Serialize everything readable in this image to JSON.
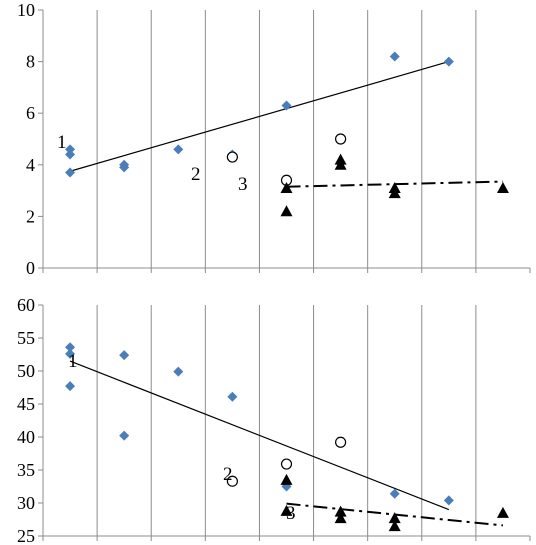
{
  "chart_data": [
    {
      "type": "scatter",
      "ylim": [
        0,
        10
      ],
      "yticks": [
        "0",
        "2",
        "4",
        "6",
        "8",
        "10"
      ],
      "x_categories": 9,
      "grid": "vertical",
      "series": [
        {
          "label": "1",
          "marker": "diamond",
          "color": "#4a7ebb",
          "points": [
            [
              1,
              4.6
            ],
            [
              1,
              4.4
            ],
            [
              1,
              3.7
            ],
            [
              2,
              4.0
            ],
            [
              2,
              3.9
            ],
            [
              3,
              4.6
            ],
            [
              4,
              4.4
            ],
            [
              5,
              6.3
            ],
            [
              7,
              8.2
            ],
            [
              8,
              8.0
            ]
          ],
          "trend": "solid",
          "trend_line": [
            [
              1,
              3.75
            ],
            [
              8,
              8.0
            ]
          ]
        },
        {
          "label": "2",
          "marker": "open-circle",
          "color": "#000000",
          "points": [
            [
              4,
              4.3
            ],
            [
              5,
              3.4
            ],
            [
              6,
              5.0
            ]
          ]
        },
        {
          "label": "3",
          "marker": "triangle",
          "color": "#000000",
          "points": [
            [
              5,
              3.1
            ],
            [
              5,
              2.2
            ],
            [
              6,
              4.2
            ],
            [
              6,
              4.0
            ],
            [
              7,
              3.1
            ],
            [
              7,
              2.9
            ],
            [
              9,
              3.1
            ]
          ],
          "trend": "dash-dot",
          "trend_line": [
            [
              5,
              3.15
            ],
            [
              9,
              3.35
            ]
          ]
        }
      ]
    },
    {
      "type": "scatter",
      "ylim": [
        25,
        60
      ],
      "yticks": [
        "25",
        "30",
        "35",
        "40",
        "45",
        "50",
        "55",
        "60"
      ],
      "x_categories": 9,
      "grid": "vertical",
      "series": [
        {
          "label": "1",
          "marker": "diamond",
          "color": "#4a7ebb",
          "points": [
            [
              1,
              53.6
            ],
            [
              1,
              52.6
            ],
            [
              1,
              47.7
            ],
            [
              2,
              52.4
            ],
            [
              2,
              40.2
            ],
            [
              3,
              49.9
            ],
            [
              4,
              46.1
            ],
            [
              5,
              32.5
            ],
            [
              7,
              31.4
            ],
            [
              8,
              30.4
            ]
          ],
          "trend": "solid",
          "trend_line": [
            [
              1,
              51.5
            ],
            [
              8,
              29.0
            ]
          ]
        },
        {
          "label": "2",
          "marker": "open-circle",
          "color": "#000000",
          "points": [
            [
              4,
              33.3
            ],
            [
              5,
              35.9
            ],
            [
              6,
              39.2
            ]
          ]
        },
        {
          "label": "3",
          "marker": "triangle",
          "color": "#000000",
          "points": [
            [
              5,
              33.5
            ],
            [
              5,
              28.8
            ],
            [
              6,
              28.7
            ],
            [
              6,
              27.7
            ],
            [
              7,
              27.7
            ],
            [
              7,
              26.5
            ],
            [
              9,
              28.5
            ]
          ],
          "trend": "dash-dot",
          "trend_line": [
            [
              5,
              29.9
            ],
            [
              9,
              26.6
            ]
          ]
        }
      ]
    }
  ]
}
